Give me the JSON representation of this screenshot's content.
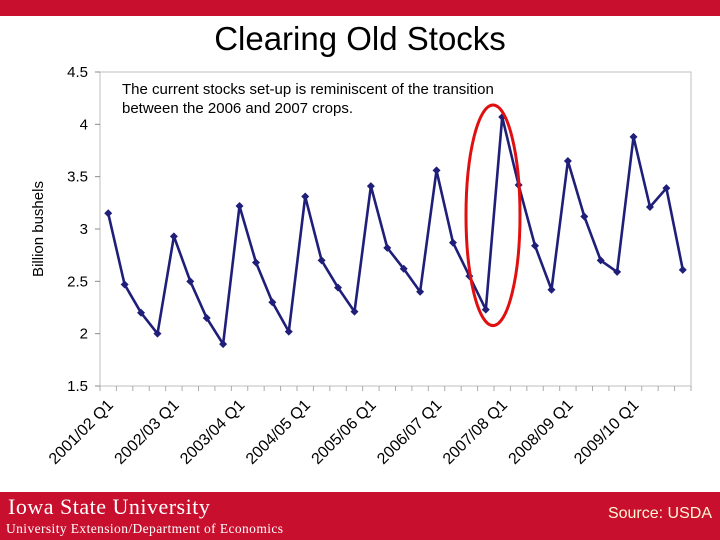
{
  "slide": {
    "title": "Clearing Old Stocks",
    "footer_logo": "Iowa State University",
    "footer_department": "University Extension/Department of Economics",
    "source": "Source: USDA"
  },
  "colors": {
    "brand_red": "#c8102e",
    "series_blue": "#1f1f7a",
    "highlight_red": "#e01010"
  },
  "chart_data": {
    "type": "line",
    "title": "",
    "ylabel": "Billion bushels",
    "xlabel": "",
    "ylim": [
      1.5,
      4.5
    ],
    "yticks": [
      1.5,
      2,
      2.5,
      3,
      3.5,
      4,
      4.5
    ],
    "ytick_labels": [
      "1.5",
      "2",
      "2.5",
      "3",
      "3.5",
      "4",
      "4.5"
    ],
    "x_tick_labels": [
      "2001/02 Q1",
      "2002/03 Q1",
      "2003/04 Q1",
      "2004/05 Q1",
      "2005/06 Q1",
      "2006/07 Q1",
      "2007/08 Q1",
      "2008/09 Q1",
      "2009/10 Q1"
    ],
    "x_tick_every": 4,
    "grid": false,
    "annotation": "The current stocks set-up is reminiscent of the transition between the 2006 and 2007 crops.",
    "highlight_range": [
      26,
      27
    ],
    "series": [
      {
        "values": [
          3.15,
          2.47,
          2.2,
          2.0,
          2.93,
          2.5,
          2.15,
          1.9,
          3.22,
          2.68,
          2.3,
          2.02,
          3.31,
          2.7,
          2.44,
          2.21,
          3.41,
          2.82,
          2.62,
          2.4,
          3.56,
          2.87,
          2.55,
          2.23,
          4.07,
          3.42,
          2.84,
          2.42,
          3.65,
          3.12,
          2.7,
          2.59,
          3.88,
          3.21,
          3.39,
          2.61
        ]
      }
    ]
  }
}
